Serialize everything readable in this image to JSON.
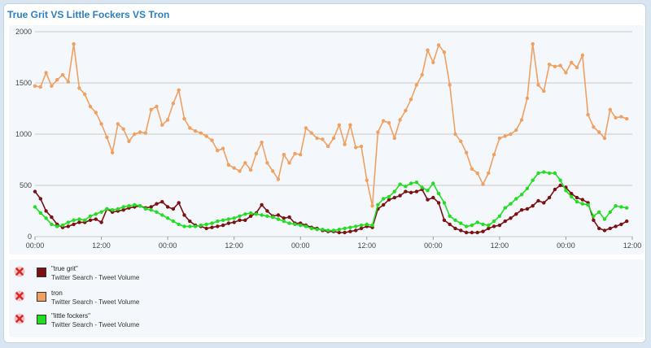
{
  "title": "True Grit VS Little Fockers VS Tron",
  "legend": [
    {
      "name": "\"true grit\"",
      "source": "Twitter Search - Tweet Volume",
      "color": "#7b1111",
      "icon": "remove-x-icon"
    },
    {
      "name": "tron",
      "source": "Twitter Search - Tweet Volume",
      "color": "#f0a060",
      "icon": "remove-x-icon"
    },
    {
      "name": "\"little fockers\"",
      "source": "Twitter Search - Tweet Volume",
      "color": "#22dd22",
      "icon": "remove-x-icon"
    }
  ],
  "chart_data": {
    "type": "line",
    "title": "True Grit VS Little Fockers VS Tron",
    "xlabel": "",
    "ylabel": "",
    "ylim": [
      0,
      2000
    ],
    "yticks": [
      "0",
      "500",
      "1000",
      "1500",
      "2000"
    ],
    "xtick_labels": [
      "00:00",
      "12:00",
      "00:00",
      "12:00",
      "00:00",
      "12:00",
      "00:00",
      "12:00",
      "00:00",
      "12:00"
    ],
    "xlim": [
      0,
      108
    ],
    "grid": true,
    "marker": "circle",
    "series": [
      {
        "name": "tron",
        "color": "#f0a060",
        "values": [
          1470,
          1460,
          1600,
          1470,
          1530,
          1580,
          1510,
          1880,
          1450,
          1390,
          1270,
          1210,
          1100,
          970,
          820,
          1100,
          1050,
          930,
          1000,
          1020,
          1010,
          1240,
          1270,
          1090,
          1140,
          1300,
          1430,
          1150,
          1060,
          1030,
          1010,
          980,
          940,
          840,
          860,
          700,
          670,
          640,
          720,
          650,
          810,
          920,
          720,
          640,
          560,
          800,
          720,
          810,
          800,
          1060,
          1010,
          960,
          950,
          880,
          960,
          1090,
          900,
          1090,
          870,
          880,
          550,
          300,
          1020,
          1130,
          1110,
          960,
          1140,
          1230,
          1340,
          1480,
          1580,
          1820,
          1700,
          1870,
          1800,
          1480,
          1000,
          930,
          820,
          660,
          620,
          510,
          620,
          800,
          960,
          980,
          1000,
          1040,
          1140,
          1350,
          1880,
          1480,
          1420,
          1680,
          1660,
          1670,
          1600,
          1700,
          1650,
          1770,
          1190,
          1070,
          1020,
          960,
          1240,
          1160,
          1170,
          1150
        ]
      },
      {
        "name": "\"true grit\"",
        "color": "#7b1111",
        "values": [
          440,
          370,
          250,
          190,
          120,
          90,
          100,
          120,
          140,
          140,
          160,
          170,
          140,
          270,
          240,
          250,
          260,
          280,
          290,
          300,
          280,
          290,
          320,
          340,
          290,
          270,
          330,
          210,
          150,
          110,
          100,
          80,
          90,
          100,
          110,
          130,
          140,
          160,
          160,
          200,
          230,
          310,
          250,
          200,
          210,
          180,
          190,
          130,
          130,
          110,
          90,
          80,
          60,
          50,
          50,
          40,
          40,
          50,
          60,
          80,
          100,
          90,
          270,
          310,
          360,
          380,
          400,
          440,
          430,
          440,
          460,
          360,
          380,
          330,
          160,
          120,
          80,
          60,
          40,
          40,
          40,
          50,
          80,
          100,
          110,
          150,
          180,
          220,
          260,
          270,
          300,
          350,
          330,
          380,
          460,
          500,
          480,
          420,
          380,
          360,
          330,
          160,
          80,
          60,
          80,
          100,
          120,
          150
        ]
      },
      {
        "name": "\"little fockers\"",
        "color": "#22dd22",
        "values": [
          290,
          230,
          180,
          120,
          100,
          110,
          140,
          160,
          170,
          160,
          200,
          220,
          240,
          270,
          260,
          270,
          290,
          300,
          310,
          300,
          270,
          260,
          240,
          210,
          180,
          150,
          120,
          100,
          100,
          100,
          110,
          120,
          130,
          150,
          160,
          170,
          180,
          200,
          220,
          230,
          220,
          210,
          200,
          190,
          170,
          150,
          130,
          120,
          110,
          100,
          80,
          70,
          70,
          60,
          60,
          70,
          80,
          90,
          100,
          110,
          120,
          110,
          310,
          370,
          390,
          440,
          510,
          490,
          520,
          530,
          480,
          450,
          520,
          420,
          330,
          200,
          160,
          130,
          100,
          110,
          140,
          120,
          110,
          150,
          200,
          280,
          320,
          370,
          410,
          470,
          550,
          620,
          630,
          620,
          620,
          550,
          450,
          390,
          340,
          320,
          310,
          200,
          240,
          170,
          240,
          300,
          290,
          280
        ]
      }
    ]
  }
}
